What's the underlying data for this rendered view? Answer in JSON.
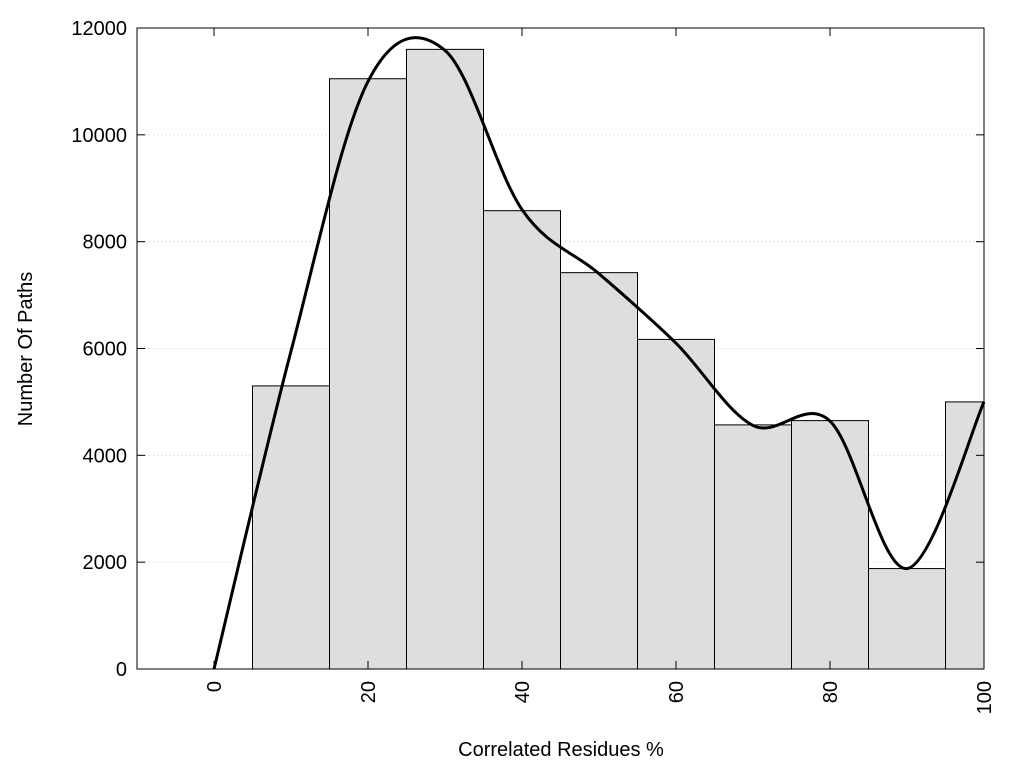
{
  "chart_data": {
    "type": "histogram",
    "x_label": "Correlated Residues %",
    "y_label": "Number Of Paths",
    "bins": [
      5,
      15,
      25,
      35,
      45,
      55,
      65,
      75,
      85,
      95,
      100
    ],
    "values": [
      5300,
      11050,
      11600,
      8580,
      7420,
      6170,
      4570,
      4650,
      1880,
      5000
    ],
    "color": "#dedede",
    "xlim": [
      -10,
      100
    ],
    "xticks": [
      0,
      20,
      40,
      60,
      80,
      100
    ],
    "ylim": [
      0,
      12000
    ],
    "yticks": [
      0,
      2000,
      4000,
      6000,
      8000,
      10000,
      12000
    ],
    "grid": true,
    "curve": {
      "type": "line",
      "color": "#000000",
      "x": [
        0,
        10,
        20,
        30,
        40,
        50,
        60,
        70,
        80,
        90,
        100
      ],
      "values": [
        0,
        5950,
        11000,
        11580,
        8600,
        7400,
        6100,
        4560,
        4640,
        1880,
        5000
      ]
    }
  }
}
